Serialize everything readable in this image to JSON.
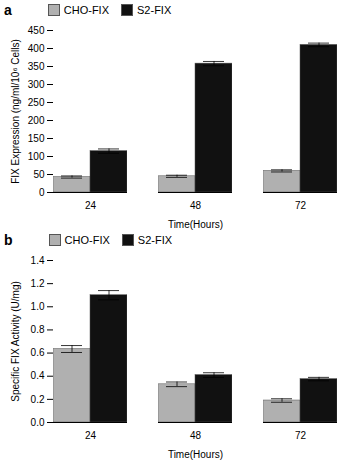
{
  "chart_data": [
    {
      "type": "bar",
      "title": "a",
      "categories": [
        "24",
        "48",
        "72"
      ],
      "series": [
        {
          "name": "CHO-FIX",
          "color": "#b0b0b0",
          "values": [
            43,
            45,
            60
          ],
          "errors": [
            3,
            3,
            3
          ]
        },
        {
          "name": "S2-FIX",
          "color": "#111111",
          "values": [
            115,
            358,
            410
          ],
          "errors": [
            6,
            6,
            5
          ]
        }
      ],
      "xlabel": "Time(Hours)",
      "ylabel": "FIX Expression (ng/ml/10⁶ Cells)",
      "ylim": [
        0,
        450
      ],
      "yticks": [
        0,
        50,
        100,
        150,
        200,
        250,
        300,
        350,
        400,
        450
      ],
      "legend": "upper left",
      "grid": false
    },
    {
      "type": "bar",
      "title": "b",
      "categories": [
        "24",
        "48",
        "72"
      ],
      "series": [
        {
          "name": "CHO-FIX",
          "color": "#b0b0b0",
          "values": [
            0.635,
            0.33,
            0.19
          ],
          "errors": [
            0.03,
            0.02,
            0.015
          ]
        },
        {
          "name": "S2-FIX",
          "color": "#111111",
          "values": [
            1.1,
            0.41,
            0.375
          ],
          "errors": [
            0.04,
            0.02,
            0.015
          ]
        }
      ],
      "xlabel": "Time(Hours)",
      "ylabel": "Specific FIX Activity (U/mg)",
      "ylim": [
        0,
        1.4
      ],
      "yticks": [
        {
          "value": 0,
          "label": "0.0"
        },
        0.2,
        0.4,
        0.6,
        0.8,
        {
          "value": 1,
          "label": "1.0"
        },
        1.2,
        1.4
      ],
      "legend": "upper left",
      "grid": false
    }
  ]
}
